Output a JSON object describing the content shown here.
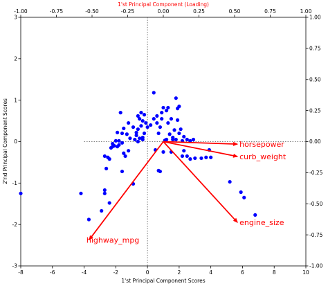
{
  "chart_data": {
    "type": "scatter",
    "title": "",
    "xlabel": "1'st Principal Component Scores",
    "ylabel": "2'nd Principal Component Scores",
    "top_xlabel": "1'st Principal Component (Loading)",
    "xlim": [
      -8,
      10
    ],
    "ylim": [
      -3,
      3
    ],
    "top_xlim": [
      -1,
      1
    ],
    "right_ylim": [
      -1,
      1
    ],
    "x_ticks": [
      "-8",
      "-6",
      "-4",
      "-2",
      "0",
      "2",
      "4",
      "6",
      "8",
      "10"
    ],
    "y_ticks": [
      "-3",
      "-2",
      "-1",
      "0",
      "1",
      "2",
      "3"
    ],
    "top_ticks": [
      "-1.00",
      "-0.75",
      "-0.50",
      "-0.25",
      "0.00",
      "0.25",
      "0.50",
      "0.75",
      "1.00"
    ],
    "right_ticks": [
      "-1.00",
      "-0.75",
      "-0.50",
      "-0.25",
      "0.00",
      "0.25",
      "0.50",
      "0.75",
      "1.00"
    ],
    "point_color": "#0000ff",
    "vector_color": "#ff0000",
    "guide_lines": {
      "x": 0,
      "y": 0,
      "style": "dotted"
    },
    "points": [
      [
        -8.0,
        -1.25
      ],
      [
        -4.2,
        -1.25
      ],
      [
        -3.7,
        -1.88
      ],
      [
        -2.9,
        -1.67
      ],
      [
        -2.7,
        -1.25
      ],
      [
        -2.7,
        -1.17
      ],
      [
        -2.4,
        -1.48
      ],
      [
        -2.6,
        -0.65
      ],
      [
        -2.4,
        -0.42
      ],
      [
        -2.5,
        -0.38
      ],
      [
        -2.7,
        -0.35
      ],
      [
        -2.2,
        -0.12
      ],
      [
        -2.1,
        -0.1
      ],
      [
        -2.2,
        -0.05
      ],
      [
        -1.9,
        -0.12
      ],
      [
        -1.8,
        -0.08
      ],
      [
        -1.6,
        -0.03
      ],
      [
        -2.0,
        0.02
      ],
      [
        -1.8,
        0.02
      ],
      [
        -1.5,
        -0.28
      ],
      [
        -1.2,
        -0.22
      ],
      [
        -1.4,
        -0.35
      ],
      [
        -1.1,
        0.08
      ],
      [
        -1.6,
        0.2
      ],
      [
        -1.3,
        0.18
      ],
      [
        -1.5,
        0.32
      ],
      [
        -1.2,
        0.45
      ],
      [
        -1.7,
        0.7
      ],
      [
        -0.8,
        0.05
      ],
      [
        -0.7,
        0.15
      ],
      [
        -0.5,
        0.08
      ],
      [
        -0.6,
        0.3
      ],
      [
        -0.7,
        0.22
      ],
      [
        -0.9,
        0.35
      ],
      [
        -0.4,
        0.38
      ],
      [
        -0.3,
        0.5
      ],
      [
        -0.5,
        0.55
      ],
      [
        -0.2,
        0.65
      ],
      [
        -0.6,
        0.62
      ],
      [
        -0.4,
        0.7
      ],
      [
        -0.1,
        0.45
      ],
      [
        -0.3,
        0.05
      ],
      [
        -0.2,
        0.2
      ],
      [
        0.0,
        0.35
      ],
      [
        0.2,
        0.4
      ],
      [
        0.4,
        0.55
      ],
      [
        0.6,
        0.62
      ],
      [
        0.4,
        1.18
      ],
      [
        0.7,
        0.2
      ],
      [
        0.8,
        0.35
      ],
      [
        0.9,
        0.55
      ],
      [
        1.0,
        0.82
      ],
      [
        1.2,
        0.75
      ],
      [
        1.3,
        0.82
      ],
      [
        1.5,
        0.55
      ],
      [
        1.2,
        0.05
      ],
      [
        1.4,
        0.18
      ],
      [
        1.6,
        0.1
      ],
      [
        1.8,
        0.05
      ],
      [
        2.0,
        0.2
      ],
      [
        1.9,
        0.8
      ],
      [
        2.0,
        0.85
      ],
      [
        1.8,
        1.05
      ],
      [
        2.1,
        0.3
      ],
      [
        2.3,
        0.12
      ],
      [
        2.5,
        0.05
      ],
      [
        2.7,
        0.02
      ],
      [
        2.3,
        -0.22
      ],
      [
        2.5,
        -0.35
      ],
      [
        2.7,
        -0.42
      ],
      [
        3.0,
        -0.4
      ],
      [
        3.4,
        -0.4
      ],
      [
        3.7,
        -0.38
      ],
      [
        4.0,
        -0.38
      ],
      [
        3.9,
        -0.2
      ],
      [
        0.8,
        -0.72
      ],
      [
        0.7,
        -0.7
      ],
      [
        5.2,
        -0.97
      ],
      [
        5.9,
        -1.22
      ],
      [
        6.1,
        -1.35
      ],
      [
        6.8,
        -1.77
      ],
      [
        -0.9,
        -1.02
      ],
      [
        -1.6,
        -0.72
      ],
      [
        -0.6,
        0.0
      ],
      [
        -0.3,
        0.1
      ],
      [
        0.5,
        -0.2
      ],
      [
        1.0,
        -0.25
      ],
      [
        1.5,
        -0.25
      ],
      [
        2.2,
        -0.35
      ],
      [
        1.1,
        0.03
      ],
      [
        1.6,
        0.05
      ],
      [
        0.9,
        0.7
      ],
      [
        1.3,
        0.45
      ],
      [
        1.7,
        0.28
      ],
      [
        0.6,
        0.45
      ],
      [
        1.9,
        0.52
      ],
      [
        2.2,
        0.02
      ],
      [
        2.9,
        0.05
      ],
      [
        -2.3,
        -0.15
      ],
      [
        -1.9,
        0.22
      ]
    ],
    "loadings": [
      {
        "name": "horsepower",
        "x": 0.52,
        "y": -0.02
      },
      {
        "name": "curb_weight",
        "x": 0.52,
        "y": -0.12
      },
      {
        "name": "engine_size",
        "x": 0.52,
        "y": -0.65
      },
      {
        "name": "highway_mpg",
        "x": -0.52,
        "y": -0.79
      }
    ]
  }
}
